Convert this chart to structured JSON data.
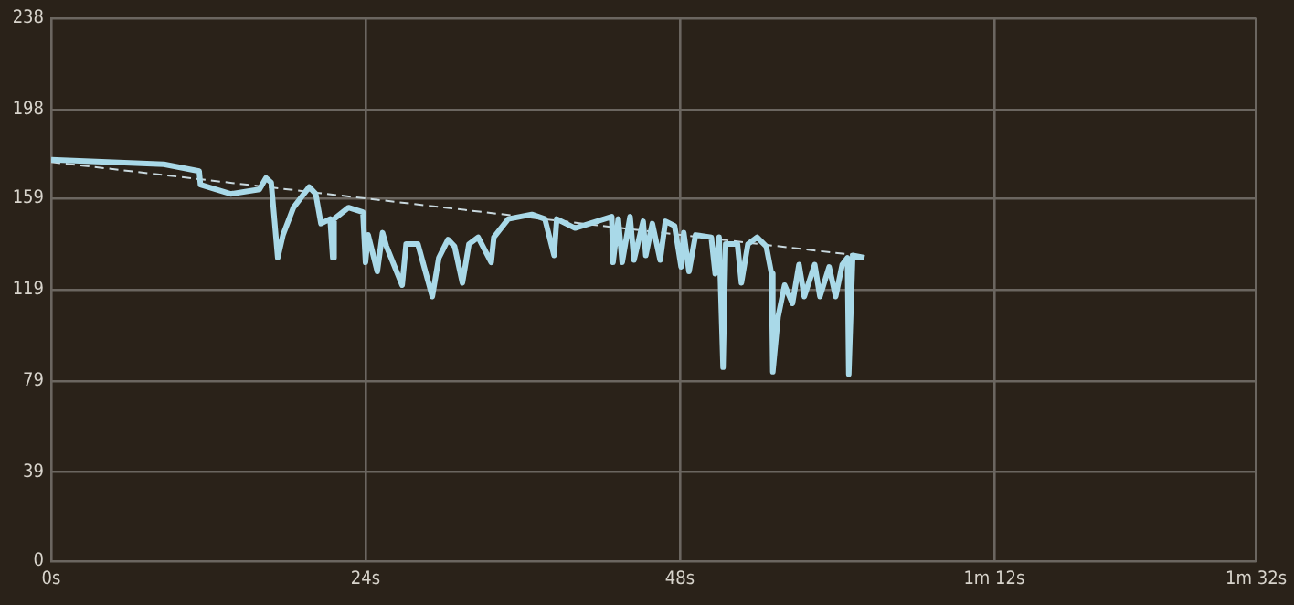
{
  "chart_data": {
    "type": "line",
    "marker": "none",
    "grid": true,
    "legend": false,
    "xlim": [
      0,
      92
    ],
    "ylim": [
      0,
      238
    ],
    "xticks": [
      {
        "value": 0,
        "label": "0s"
      },
      {
        "value": 24,
        "label": "24s"
      },
      {
        "value": 48,
        "label": "48s"
      },
      {
        "value": 72,
        "label": "1m 12s"
      },
      {
        "value": 92,
        "label": "1m 32s"
      }
    ],
    "yticks": [
      0,
      39,
      79,
      119,
      159,
      198,
      238
    ],
    "series": [
      {
        "color": "#a9d9e8",
        "line_style": "solid",
        "x": [
          0,
          8.6,
          11.3,
          11.4,
          13.7,
          15.9,
          16.4,
          16.8,
          17.3,
          17.7,
          18.5,
          19.7,
          20.2,
          20.6,
          21.3,
          21.5,
          21.6,
          22.7,
          23.8,
          24.0,
          24.2,
          24.9,
          25.3,
          25.6,
          26.8,
          27.1,
          28,
          29.1,
          29.6,
          30.3,
          30.8,
          31.4,
          31.9,
          32.6,
          33.6,
          33.8,
          34.9,
          36.7,
          37.7,
          38.4,
          38.6,
          40,
          42.8,
          42.9,
          43.3,
          43.6,
          44.2,
          44.5,
          45.2,
          45.4,
          45.9,
          46.5,
          46.9,
          47.6,
          48.1,
          48.3,
          48.7,
          49.2,
          50.4,
          50.7,
          51,
          51.3,
          51.5,
          52.4,
          52.7,
          53.2,
          53.9,
          54.6,
          55,
          55.1,
          55.5,
          56,
          56.6,
          57.1,
          57.5,
          58.3,
          58.7,
          59.4,
          59.9,
          60.4,
          60.8,
          60.9,
          61.2,
          62.1
        ],
        "values": [
          176,
          174,
          171,
          165,
          161,
          163,
          168,
          166,
          133,
          143,
          155,
          164,
          161,
          148,
          150,
          133,
          150,
          155,
          153,
          131,
          143,
          127,
          144,
          138,
          121,
          139,
          139,
          116,
          133,
          141,
          138,
          122,
          139,
          142,
          131,
          142,
          150,
          152,
          150,
          134,
          150,
          146,
          151,
          131,
          150,
          131,
          151,
          132,
          149,
          134,
          148,
          132,
          149,
          147,
          129,
          144,
          127,
          143,
          142,
          126,
          142,
          85,
          139,
          139,
          122,
          139,
          142,
          138,
          126,
          83,
          107,
          121,
          113,
          130,
          116,
          130,
          116,
          129,
          116,
          130,
          133,
          82,
          134,
          133
        ]
      },
      {
        "color": "#c8d8de",
        "line_style": "dashed",
        "x": [
          0,
          61.6
        ],
        "values": [
          175,
          134
        ]
      }
    ]
  }
}
